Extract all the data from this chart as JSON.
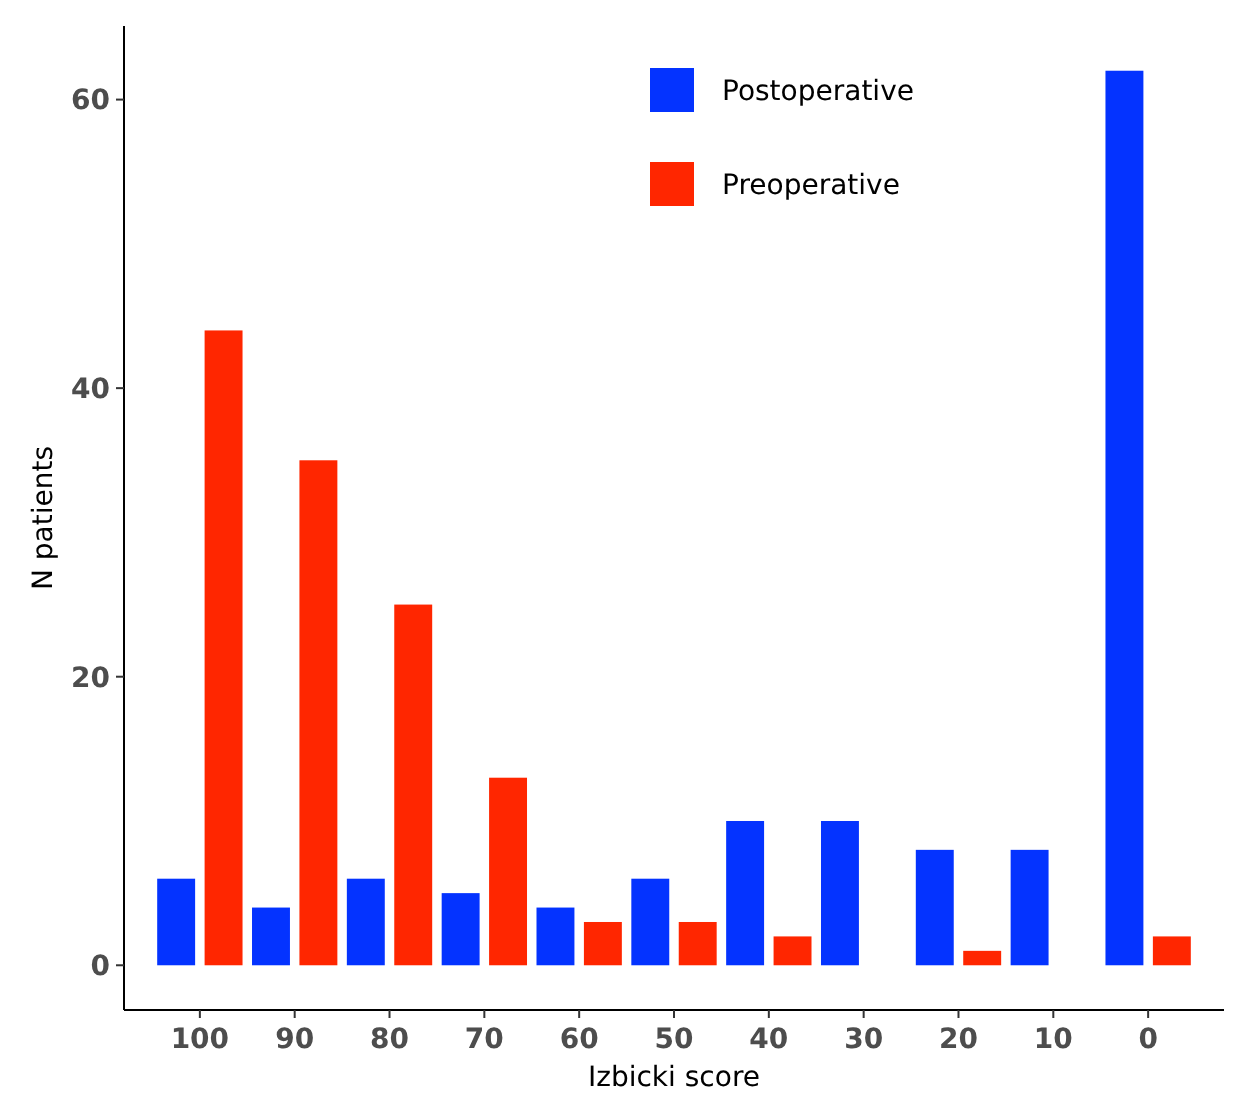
{
  "chart_data": {
    "type": "bar",
    "xlabel": "Izbicki score",
    "ylabel": "N patients",
    "categories": [
      "100",
      "90",
      "80",
      "70",
      "60",
      "50",
      "40",
      "30",
      "20",
      "10",
      "0"
    ],
    "series": [
      {
        "name": "Postoperative",
        "color": "#0433ff",
        "values": [
          6,
          4,
          6,
          5,
          4,
          6,
          10,
          10,
          8,
          8,
          62
        ]
      },
      {
        "name": "Preoperative",
        "color": "#ff2600",
        "values": [
          44,
          35,
          25,
          13,
          3,
          3,
          2,
          null,
          1,
          null,
          2
        ]
      }
    ],
    "ylim": [
      -3.1,
      65.1
    ],
    "yticks": [
      0,
      20,
      40,
      60
    ],
    "grid": false,
    "legend": "top"
  }
}
